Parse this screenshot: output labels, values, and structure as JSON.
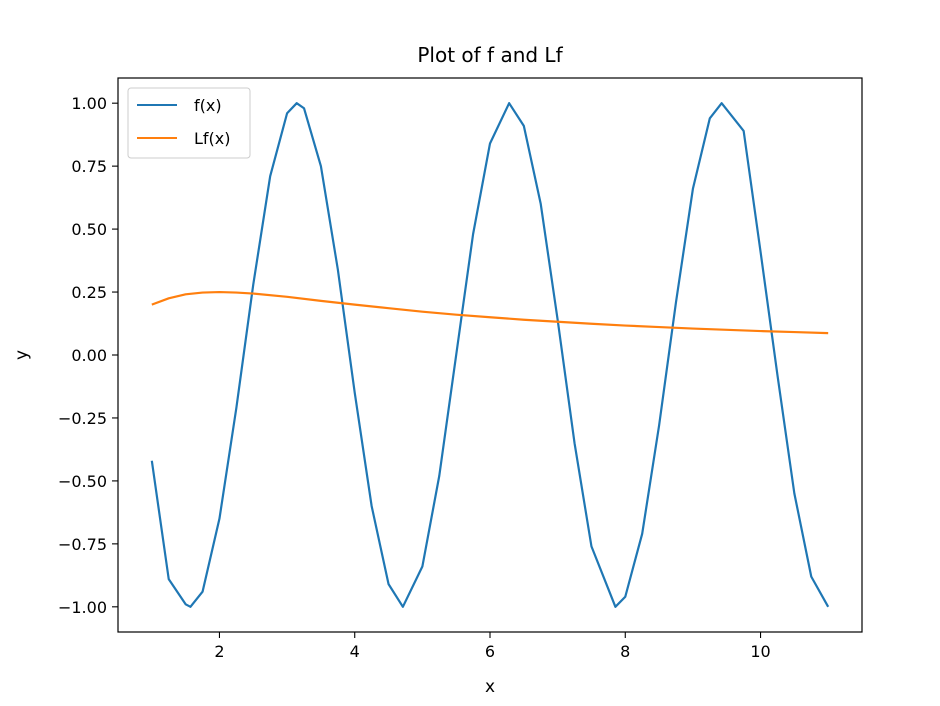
{
  "chart_data": {
    "type": "line",
    "title": "Plot of f and Lf",
    "xlabel": "x",
    "ylabel": "y",
    "xlim": [
      0.5,
      11.5
    ],
    "ylim": [
      -1.1,
      1.1
    ],
    "xticks": [
      2,
      4,
      6,
      8,
      10
    ],
    "xtick_labels": [
      "2",
      "4",
      "6",
      "8",
      "10"
    ],
    "yticks": [
      1.0,
      0.75,
      0.5,
      0.25,
      0.0,
      -0.25,
      -0.5,
      -0.75,
      -1.0
    ],
    "ytick_labels": [
      "1.00",
      "0.75",
      "0.50",
      "0.25",
      "0.00",
      "−0.25",
      "−0.50",
      "−0.75",
      "−1.00"
    ],
    "grid": false,
    "legend_position": "top-left",
    "series": [
      {
        "name": "f(x)",
        "color": "#1f77b4",
        "x": [
          1.0,
          1.25,
          1.5,
          1.571,
          1.75,
          2.0,
          2.25,
          2.5,
          2.75,
          3.0,
          3.142,
          3.25,
          3.5,
          3.75,
          4.0,
          4.25,
          4.5,
          4.712,
          5.0,
          5.25,
          5.5,
          5.75,
          6.0,
          6.283,
          6.5,
          6.75,
          7.0,
          7.25,
          7.5,
          7.854,
          8.0,
          8.25,
          8.5,
          8.75,
          9.0,
          9.25,
          9.425,
          9.75,
          10.0,
          10.25,
          10.5,
          10.75,
          11.0
        ],
        "y": [
          -0.42,
          -0.89,
          -0.99,
          -1.0,
          -0.94,
          -0.65,
          -0.21,
          0.28,
          0.71,
          0.96,
          1.0,
          0.98,
          0.75,
          0.34,
          -0.15,
          -0.6,
          -0.91,
          -1.0,
          -0.84,
          -0.48,
          0.0,
          0.48,
          0.84,
          1.0,
          0.91,
          0.6,
          0.14,
          -0.35,
          -0.76,
          -1.0,
          -0.96,
          -0.71,
          -0.28,
          0.21,
          0.66,
          0.94,
          1.0,
          0.89,
          0.41,
          -0.08,
          -0.55,
          -0.88,
          -1.0
        ]
      },
      {
        "name": "Lf(x)",
        "color": "#ff7f0e",
        "x": [
          1.0,
          1.25,
          1.5,
          1.75,
          2.0,
          2.25,
          2.5,
          3.0,
          3.5,
          4.0,
          4.5,
          5.0,
          5.5,
          6.0,
          6.5,
          7.0,
          7.5,
          8.0,
          8.5,
          9.0,
          9.5,
          10.0,
          10.5,
          11.0
        ],
        "y": [
          0.2,
          0.225,
          0.241,
          0.248,
          0.25,
          0.248,
          0.244,
          0.231,
          0.215,
          0.2,
          0.186,
          0.172,
          0.16,
          0.15,
          0.14,
          0.132,
          0.124,
          0.117,
          0.111,
          0.105,
          0.1,
          0.095,
          0.091,
          0.087
        ]
      }
    ]
  }
}
